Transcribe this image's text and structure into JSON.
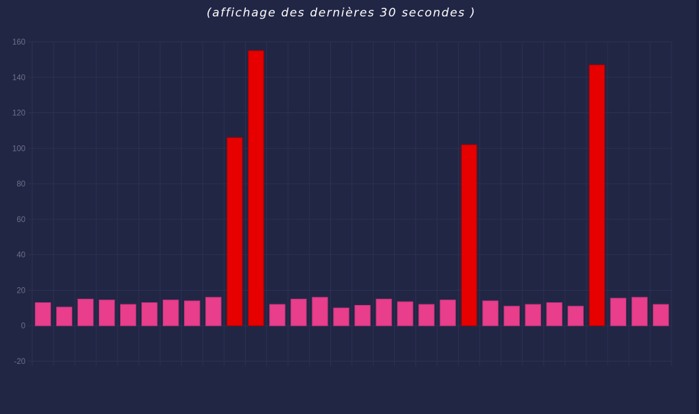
{
  "chart_data": {
    "type": "bar",
    "title": "(affichage des dernières 30 secondes )",
    "xlabel": "",
    "ylabel": "",
    "ylim": [
      -20,
      160
    ],
    "yticks": [
      160,
      140,
      120,
      100,
      80,
      60,
      40,
      20,
      0,
      -20
    ],
    "grid": true,
    "legend": "none",
    "values": [
      13,
      10.5,
      15,
      14.5,
      12,
      13,
      14.5,
      14,
      16,
      106,
      155,
      12,
      15,
      16,
      10,
      11.5,
      15,
      13.5,
      12,
      14.5,
      102,
      14,
      11,
      12,
      13,
      11,
      147,
      15.5,
      16,
      12
    ],
    "highlight_threshold": 100
  },
  "colors": {
    "background": "#222645",
    "grid": "#2d3152",
    "axis_text": "#6d7086",
    "bar_normal": "#e83e8c",
    "bar_normal_border": "#c7357a",
    "bar_high": "#e60000",
    "bar_high_border": "#a80000",
    "title": "#ffffff"
  }
}
